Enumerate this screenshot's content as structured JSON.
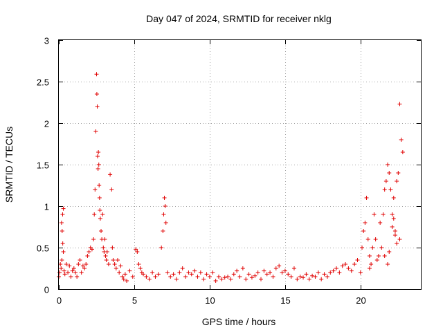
{
  "chart_data": {
    "type": "scatter",
    "title": "Day 047 of 2024, SRMTID for receiver nklg",
    "xlabel": "GPS time / hours",
    "ylabel": "SRMTID / TECUs",
    "xlim": [
      0,
      24
    ],
    "ylim": [
      0,
      3
    ],
    "grid": true,
    "marker": "+",
    "color": "#e00000",
    "x_ticks": [
      0,
      5,
      10,
      15,
      20
    ],
    "x_tick_labels": [
      "0",
      "5",
      "10",
      "15",
      "20"
    ],
    "y_ticks": [
      0,
      0.5,
      1,
      1.5,
      2,
      2.5,
      3
    ],
    "y_tick_labels": [
      "0",
      "0.5",
      "1",
      "1.5",
      "2",
      "2.5",
      "3"
    ],
    "series": [
      {
        "name": "SRMTID",
        "x": [
          0.0,
          0.05,
          0.1,
          0.15,
          0.2,
          0.25,
          0.3,
          0.35,
          0.4,
          0.5,
          0.6,
          0.7,
          0.8,
          0.9,
          1.0,
          1.1,
          0.18,
          0.22,
          0.26,
          0.3,
          1.2,
          1.3,
          1.4,
          1.5,
          1.6,
          1.7,
          1.8,
          1.9,
          2.0,
          2.1,
          2.2,
          2.3,
          2.35,
          2.4,
          2.45,
          2.5,
          2.52,
          2.55,
          2.57,
          2.6,
          2.62,
          2.65,
          2.67,
          2.7,
          2.72,
          2.75,
          2.8,
          2.85,
          2.9,
          2.95,
          3.0,
          3.05,
          3.1,
          3.15,
          3.2,
          3.3,
          3.4,
          3.5,
          3.55,
          3.6,
          3.7,
          3.8,
          3.9,
          4.0,
          4.1,
          4.2,
          4.3,
          4.4,
          4.5,
          4.7,
          4.9,
          5.1,
          5.2,
          5.3,
          5.4,
          5.5,
          5.6,
          5.8,
          6.0,
          6.2,
          6.4,
          6.6,
          6.8,
          6.9,
          6.95,
          7.0,
          7.05,
          7.1,
          7.2,
          7.4,
          7.6,
          7.8,
          8.0,
          8.2,
          8.4,
          8.6,
          8.8,
          9.0,
          9.2,
          9.4,
          9.6,
          9.8,
          10.0,
          10.2,
          10.4,
          10.6,
          10.8,
          11.0,
          11.2,
          11.4,
          11.6,
          11.8,
          12.0,
          12.2,
          12.4,
          12.6,
          12.8,
          13.0,
          13.2,
          13.4,
          13.6,
          13.8,
          14.0,
          14.2,
          14.4,
          14.6,
          14.8,
          15.0,
          15.2,
          15.4,
          15.6,
          15.8,
          16.0,
          16.2,
          16.4,
          16.6,
          16.8,
          17.0,
          17.2,
          17.4,
          17.6,
          17.8,
          18.0,
          18.2,
          18.4,
          18.6,
          18.8,
          19.0,
          19.2,
          19.4,
          19.6,
          19.8,
          20.0,
          20.1,
          20.2,
          20.3,
          20.4,
          20.5,
          20.6,
          20.7,
          20.8,
          20.9,
          21.0,
          21.1,
          21.2,
          21.3,
          21.4,
          21.5,
          21.6,
          21.7,
          21.8,
          21.9,
          22.0,
          22.1,
          22.2,
          22.3,
          22.4,
          22.5,
          22.6,
          22.7,
          22.8,
          22.6,
          22.2,
          22.1,
          21.9,
          21.8,
          22.3,
          22.4,
          21.6,
          20.6
        ],
        "y": [
          0.15,
          0.2,
          0.3,
          0.25,
          0.35,
          0.9,
          0.97,
          0.22,
          0.18,
          0.3,
          0.2,
          0.28,
          0.15,
          0.22,
          0.25,
          0.2,
          0.8,
          0.7,
          0.55,
          0.45,
          0.15,
          0.3,
          0.35,
          0.2,
          0.28,
          0.25,
          0.3,
          0.4,
          0.45,
          0.5,
          0.48,
          0.6,
          0.9,
          1.2,
          1.9,
          2.59,
          2.35,
          2.2,
          1.6,
          1.45,
          1.65,
          1.5,
          1.25,
          1.1,
          0.95,
          0.85,
          0.7,
          0.6,
          0.9,
          0.5,
          0.45,
          0.6,
          0.4,
          0.35,
          0.45,
          0.3,
          1.38,
          1.2,
          0.5,
          0.35,
          0.3,
          0.25,
          0.35,
          0.2,
          0.28,
          0.15,
          0.12,
          0.18,
          0.1,
          0.22,
          0.15,
          0.48,
          0.45,
          0.3,
          0.25,
          0.2,
          0.18,
          0.15,
          0.12,
          0.2,
          0.15,
          0.18,
          0.5,
          0.7,
          0.9,
          1.1,
          1.0,
          0.8,
          0.2,
          0.15,
          0.18,
          0.12,
          0.2,
          0.25,
          0.15,
          0.2,
          0.18,
          0.22,
          0.15,
          0.2,
          0.12,
          0.18,
          0.15,
          0.2,
          0.1,
          0.15,
          0.12,
          0.14,
          0.15,
          0.12,
          0.18,
          0.22,
          0.15,
          0.25,
          0.12,
          0.18,
          0.14,
          0.16,
          0.2,
          0.12,
          0.22,
          0.18,
          0.2,
          0.15,
          0.25,
          0.28,
          0.2,
          0.22,
          0.18,
          0.15,
          0.25,
          0.12,
          0.15,
          0.14,
          0.18,
          0.12,
          0.16,
          0.15,
          0.2,
          0.12,
          0.18,
          0.15,
          0.2,
          0.22,
          0.25,
          0.2,
          0.28,
          0.3,
          0.25,
          0.22,
          0.3,
          0.35,
          0.2,
          0.5,
          0.7,
          0.8,
          1.1,
          0.6,
          0.4,
          0.3,
          0.5,
          0.9,
          0.6,
          0.35,
          0.4,
          0.8,
          0.5,
          0.9,
          1.2,
          1.3,
          1.5,
          1.4,
          1.2,
          0.9,
          0.85,
          0.7,
          1.3,
          1.4,
          2.23,
          1.8,
          1.65,
          0.6,
          1.1,
          0.75,
          0.45,
          0.3,
          0.65,
          0.55,
          0.4,
          0.25
        ]
      }
    ]
  }
}
